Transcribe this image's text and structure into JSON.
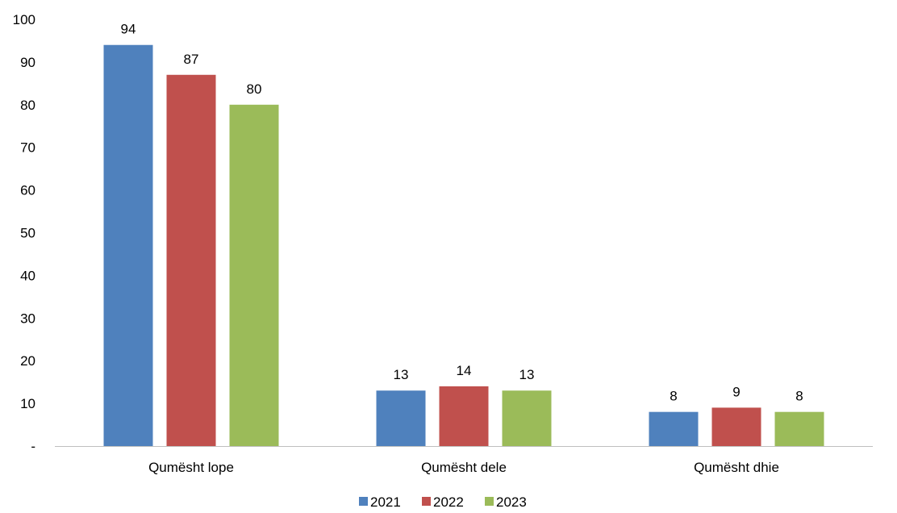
{
  "chart_data": {
    "type": "bar",
    "categories": [
      "Qumësht lope",
      "Qumësht dele",
      "Qumësht dhie"
    ],
    "series": [
      {
        "name": "2021",
        "color": "#4F81BD",
        "values": [
          94,
          13,
          8
        ]
      },
      {
        "name": "2022",
        "color": "#C0504D",
        "values": [
          87,
          14,
          9
        ]
      },
      {
        "name": "2023",
        "color": "#9BBB59",
        "values": [
          80,
          13,
          8
        ]
      }
    ],
    "data_labels": [
      [
        "94",
        "87",
        "80"
      ],
      [
        "13",
        "14",
        "13"
      ],
      [
        "8",
        "9",
        "8"
      ]
    ],
    "ylim": [
      0,
      100
    ],
    "y_ticks": [
      0,
      10,
      20,
      30,
      40,
      50,
      60,
      70,
      80,
      90,
      100
    ],
    "y_tick_labels": [
      "-",
      "10",
      "20",
      "30",
      "40",
      "50",
      "60",
      "70",
      "80",
      "90",
      "100"
    ],
    "grid": false,
    "legend_position": "bottom"
  }
}
